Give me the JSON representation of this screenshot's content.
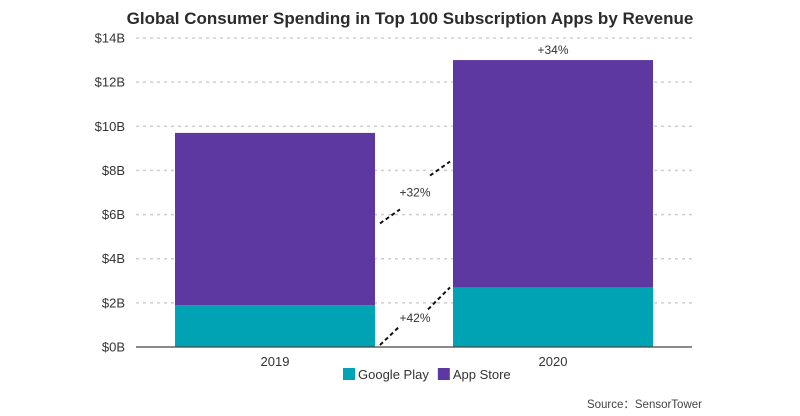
{
  "chart_data": {
    "type": "bar",
    "stacked": true,
    "title": "Global Consumer Spending in Top 100 Subscription Apps by Revenue",
    "categories": [
      "2019",
      "2020"
    ],
    "series": [
      {
        "name": "Google Play",
        "color": "#00a3b4",
        "values": [
          1.9,
          2.7
        ]
      },
      {
        "name": "App Store",
        "color": "#5d38a0",
        "values": [
          7.8,
          10.3
        ]
      }
    ],
    "ylim": [
      0,
      14
    ],
    "yticks": [
      0,
      2,
      4,
      6,
      8,
      10,
      12,
      14
    ],
    "ytick_labels": [
      "$0B",
      "$2B",
      "$4B",
      "$6B",
      "$8B",
      "$10B",
      "$12B",
      "$14B"
    ],
    "grid": true,
    "legend_position": "bottom",
    "annotations": {
      "total_growth": "+34%",
      "app_store_growth": "+32%",
      "google_play_growth": "+42%"
    },
    "source": "Source：SensorTower"
  }
}
